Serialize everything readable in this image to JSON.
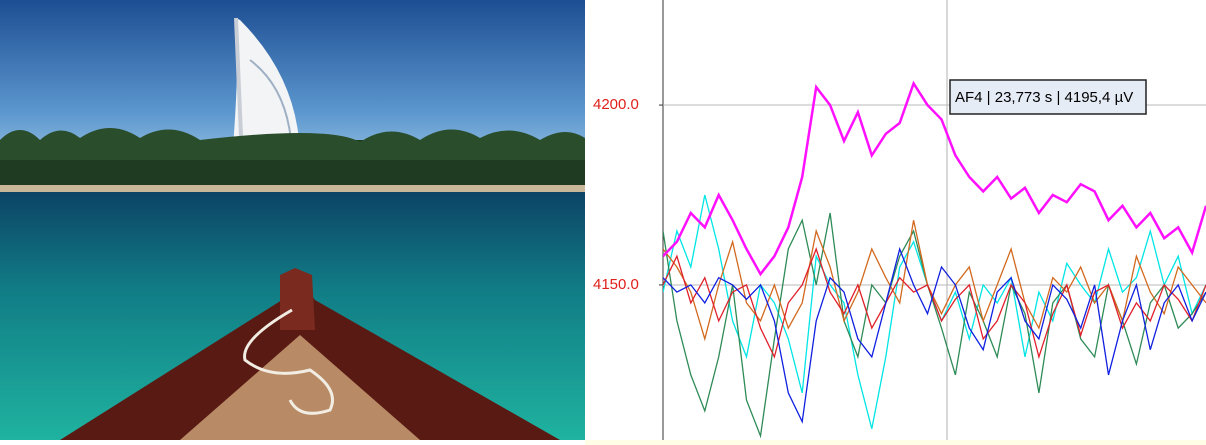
{
  "chart_data": {
    "type": "line",
    "annotation": "AF4 | 23,773 s | 4195,4 µV",
    "categories": [
      null,
      null,
      null,
      null,
      null,
      null,
      null,
      null,
      null,
      null,
      null,
      null,
      null,
      null,
      null,
      null,
      null,
      null,
      null,
      null,
      null,
      null,
      null,
      null,
      null,
      null,
      null,
      null,
      null,
      null,
      null,
      null,
      null,
      null,
      null,
      null,
      null,
      null,
      null,
      null
    ],
    "ylim": [
      4106.9,
      4229.2
    ],
    "yticks": [
      {
        "value": 4150,
        "label": "4150.0"
      },
      {
        "value": 4200,
        "label": "4200.0"
      }
    ],
    "grid": true,
    "series": [
      {
        "color": "#00e5e5",
        "values": [
          4148,
          4165,
          4155,
          4175,
          4160,
          4140,
          4130,
          4150,
          4145,
          4135,
          4120,
          4158,
          4150,
          4145,
          4125,
          4110,
          4130,
          4155,
          4162,
          4150,
          4140,
          4148,
          4135,
          4150,
          4145,
          4152,
          4130,
          4148,
          4140,
          4156,
          4150,
          4145,
          4160,
          4148,
          4152,
          4165,
          4150,
          4158,
          4142,
          4150
        ]
      },
      {
        "color": "#2e8b57",
        "values": [
          4165,
          4140,
          4125,
          4115,
          4130,
          4150,
          4118,
          4108,
          4135,
          4160,
          4168,
          4150,
          4170,
          4140,
          4130,
          4150,
          4145,
          4158,
          4165,
          4150,
          4138,
          4125,
          4148,
          4140,
          4130,
          4150,
          4142,
          4120,
          4145,
          4150,
          4135,
          4130,
          4150,
          4140,
          4128,
          4145,
          4150,
          4138,
          4142,
          4148
        ]
      },
      {
        "color": "#d2691e",
        "values": [
          4160,
          4155,
          4148,
          4135,
          4150,
          4162,
          4145,
          4140,
          4150,
          4138,
          4145,
          4165,
          4155,
          4140,
          4148,
          4160,
          4152,
          4145,
          4168,
          4150,
          4142,
          4150,
          4155,
          4140,
          4150,
          4160,
          4145,
          4138,
          4152,
          4148,
          4155,
          4145,
          4150,
          4140,
          4158,
          4148,
          4142,
          4155,
          4150,
          4145
        ]
      },
      {
        "color": "#e0202a",
        "values": [
          4150,
          4158,
          4145,
          4152,
          4140,
          4148,
          4150,
          4138,
          4130,
          4145,
          4150,
          4160,
          4148,
          4142,
          4150,
          4138,
          4145,
          4152,
          4148,
          4150,
          4140,
          4146,
          4150,
          4135,
          4140,
          4150,
          4145,
          4130,
          4142,
          4150,
          4136,
          4148,
          4150,
          4138,
          4145,
          4140,
          4150,
          4146,
          4140,
          4150
        ]
      },
      {
        "color": "#1020e0",
        "values": [
          4152,
          4148,
          4150,
          4145,
          4152,
          4150,
          4146,
          4150,
          4140,
          4120,
          4112,
          4140,
          4152,
          4148,
          4135,
          4130,
          4145,
          4160,
          4150,
          4142,
          4155,
          4150,
          4138,
          4132,
          4148,
          4152,
          4140,
          4135,
          4150,
          4146,
          4138,
          4150,
          4125,
          4140,
          4150,
          4132,
          4145,
          4150,
          4140,
          4148
        ]
      },
      {
        "color": "#ff10ff",
        "values": [
          4158,
          4162,
          4170,
          4166,
          4175,
          4168,
          4160,
          4153,
          4158,
          4166,
          4180,
          4205,
          4200,
          4190,
          4198,
          4186,
          4192,
          4195,
          4206,
          4200,
          4196,
          4186,
          4180,
          4176,
          4180,
          4174,
          4177,
          4170,
          4175,
          4173,
          4178,
          4176,
          4168,
          4172,
          4166,
          4170,
          4163,
          4166,
          4159,
          4172
        ]
      }
    ]
  }
}
